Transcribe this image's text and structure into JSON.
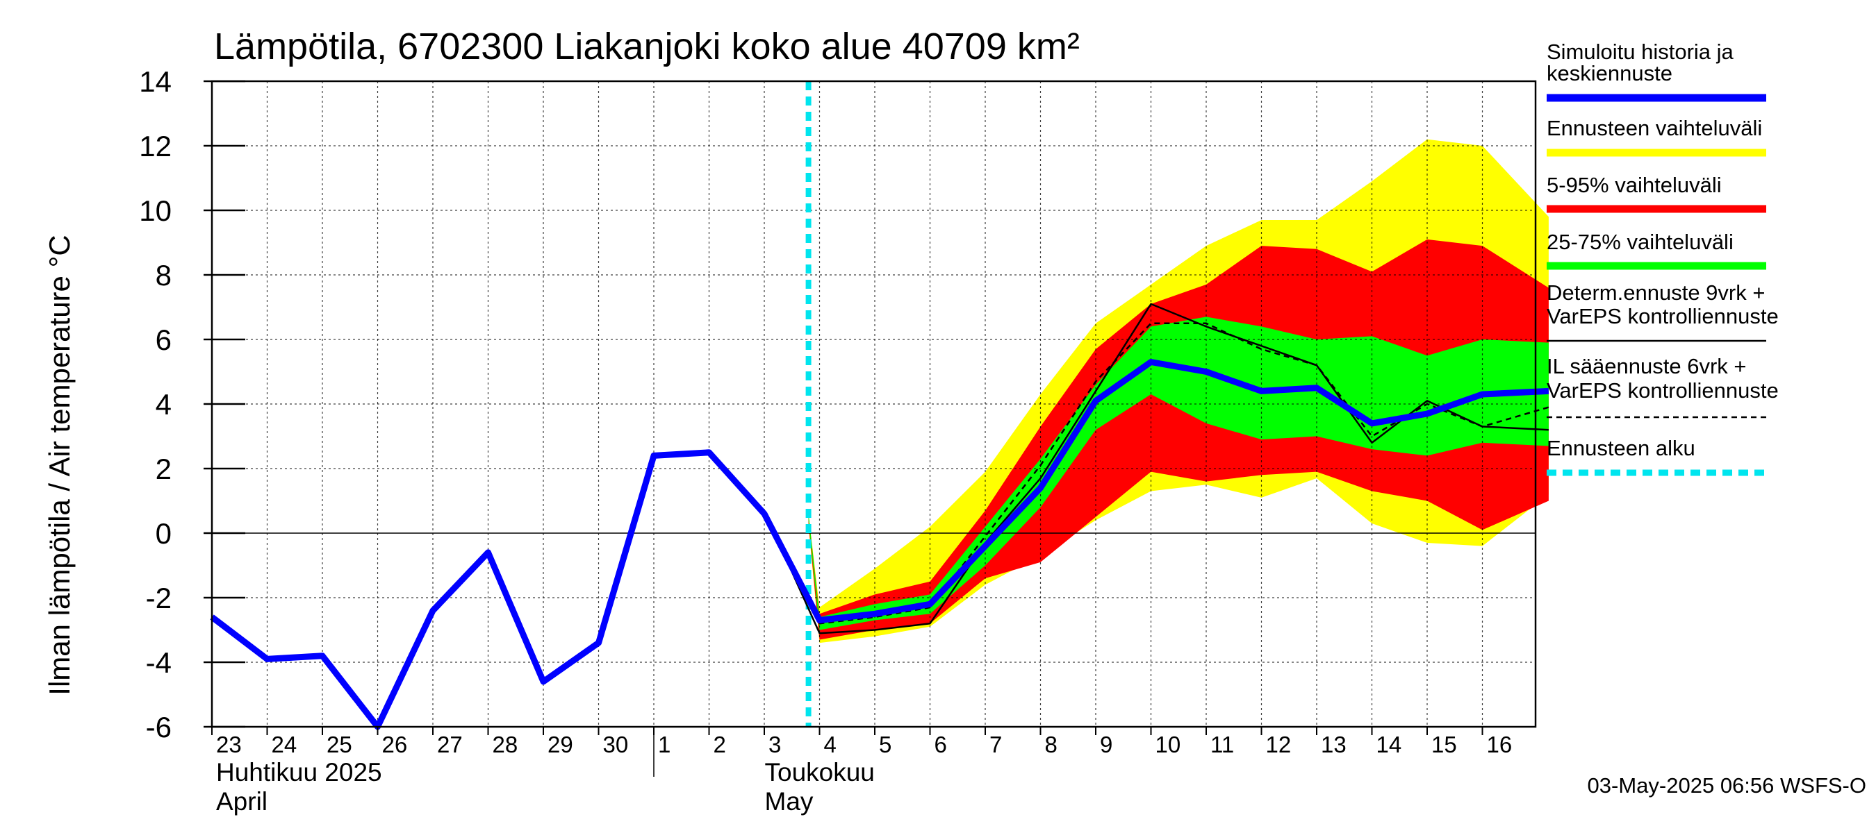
{
  "chart_data": {
    "type": "line",
    "title": "Lämpötila, 6702300 Liakanjoki koko alue 40709 km²",
    "ylabel": "Ilman lämpötila / Air temperature   °C",
    "ylim": [
      -6,
      14
    ],
    "yticks": [
      -6,
      -4,
      -2,
      0,
      2,
      4,
      6,
      8,
      10,
      12,
      14
    ],
    "xlim": [
      0,
      24.2
    ],
    "x_tick_labels": [
      "23",
      "24",
      "25",
      "26",
      "27",
      "28",
      "29",
      "30",
      "1",
      "2",
      "3",
      "4",
      "5",
      "6",
      "7",
      "8",
      "9",
      "10",
      "11",
      "12",
      "13",
      "14",
      "15",
      "16"
    ],
    "month_labels": [
      {
        "x": 0,
        "line1": "Huhtikuu  2025",
        "line2": "April"
      },
      {
        "x": 9,
        "line1": "Toukokuu",
        "line2": "May"
      }
    ],
    "month_divider_x": 8,
    "forecast_start_x": 10.8,
    "bands": {
      "x": [
        10.8,
        11.0,
        12.0,
        13.0,
        14.0,
        15.0,
        16.0,
        17.0,
        18.0,
        19.0,
        20.0,
        21.0,
        22.0,
        23.0,
        24.2
      ],
      "yellow_hi": [
        0.6,
        -2.3,
        -1.1,
        0.2,
        1.9,
        4.3,
        6.5,
        7.7,
        8.9,
        9.7,
        9.7,
        10.9,
        12.2,
        12.0,
        9.8
      ],
      "yellow_lo": [
        0.2,
        -3.4,
        -3.2,
        -2.9,
        -1.6,
        -0.7,
        0.4,
        1.3,
        1.5,
        1.1,
        1.7,
        0.3,
        -0.3,
        -0.4,
        1.2
      ],
      "red_hi": [
        0.6,
        -2.5,
        -1.9,
        -1.5,
        0.7,
        3.3,
        5.7,
        7.1,
        7.7,
        8.9,
        8.8,
        8.1,
        9.1,
        8.9,
        7.6
      ],
      "red_lo": [
        0.3,
        -3.3,
        -3.0,
        -2.8,
        -1.4,
        -0.9,
        0.5,
        1.9,
        1.6,
        1.8,
        1.9,
        1.3,
        1.0,
        0.1,
        1.0
      ],
      "green_hi": [
        0.6,
        -2.6,
        -2.2,
        -1.9,
        0.2,
        2.3,
        4.6,
        6.4,
        6.7,
        6.4,
        6.0,
        6.1,
        5.5,
        6.0,
        5.9
      ],
      "green_lo": [
        0.4,
        -3.0,
        -2.7,
        -2.5,
        -1.0,
        0.8,
        3.2,
        4.3,
        3.4,
        2.9,
        3.0,
        2.6,
        2.4,
        2.8,
        2.7
      ]
    },
    "series": [
      {
        "name": "Simuloitu historia ja keskiennuste",
        "color": "#0000ff",
        "x": [
          0,
          1,
          2,
          3,
          4,
          5,
          6,
          7,
          8,
          9,
          10,
          11,
          12,
          13,
          14,
          15,
          16,
          17,
          18,
          19,
          20,
          21,
          22,
          23,
          24.2
        ],
        "values": [
          -2.6,
          -3.9,
          -3.8,
          -6.0,
          -2.4,
          -0.6,
          -4.6,
          -3.4,
          2.4,
          2.5,
          0.6,
          -2.7,
          -2.5,
          -2.2,
          -0.4,
          1.4,
          4.1,
          5.3,
          5.0,
          4.4,
          4.5,
          3.4,
          3.7,
          4.3,
          4.4
        ]
      },
      {
        "name": "Determ.ennuste 9vrk + VarEPS kontrolliennuste",
        "color": "#000000",
        "x": [
          9,
          10,
          11,
          12,
          13,
          14,
          15,
          16,
          17,
          18,
          19,
          20,
          21,
          22,
          23,
          24.2
        ],
        "values": [
          2.5,
          0.7,
          -3.1,
          -3.0,
          -2.8,
          -0.3,
          1.7,
          4.4,
          7.1,
          6.4,
          5.8,
          5.2,
          2.8,
          4.1,
          3.3,
          3.2
        ]
      },
      {
        "name": "IL sääennuste 6vrk + VarEPS kontrolliennuste",
        "color": "#000000",
        "dashed": true,
        "x": [
          9,
          10,
          11,
          12,
          13,
          14,
          15,
          16,
          17,
          18,
          19,
          20,
          21,
          22,
          23,
          24.2
        ],
        "values": [
          2.5,
          0.5,
          -2.8,
          -2.6,
          -2.3,
          -0.1,
          2.1,
          4.7,
          6.5,
          6.5,
          5.7,
          5.2,
          3.0,
          4.0,
          3.3,
          3.9
        ]
      }
    ],
    "legend": [
      {
        "label_lines": [
          "Simuloitu historia ja",
          "keskiennuste"
        ],
        "color": "#0000ff",
        "style": "thick"
      },
      {
        "label_lines": [
          "Ennusteen vaihteluväli"
        ],
        "color": "#ffff00",
        "style": "thick"
      },
      {
        "label_lines": [
          "5-95% vaihteluväli"
        ],
        "color": "#ff0000",
        "style": "thick"
      },
      {
        "label_lines": [
          "25-75% vaihteluväli"
        ],
        "color": "#00ff00",
        "style": "thick"
      },
      {
        "label_lines": [
          "Determ.ennuste 9vrk  +",
          "VarEPS kontrolliennuste"
        ],
        "color": "#000000",
        "style": "thin"
      },
      {
        "label_lines": [
          "IL sääennuste 6vrk  +",
          "  VarEPS kontrolliennuste"
        ],
        "color": "#000000",
        "style": "dashed"
      },
      {
        "label_lines": [
          "Ennusteen alku"
        ],
        "color": "#00e5ee",
        "style": "cyan-dashed"
      }
    ],
    "legend_position": "right",
    "grid": true,
    "timestamp": "03-May-2025 06:56 WSFS-O"
  }
}
